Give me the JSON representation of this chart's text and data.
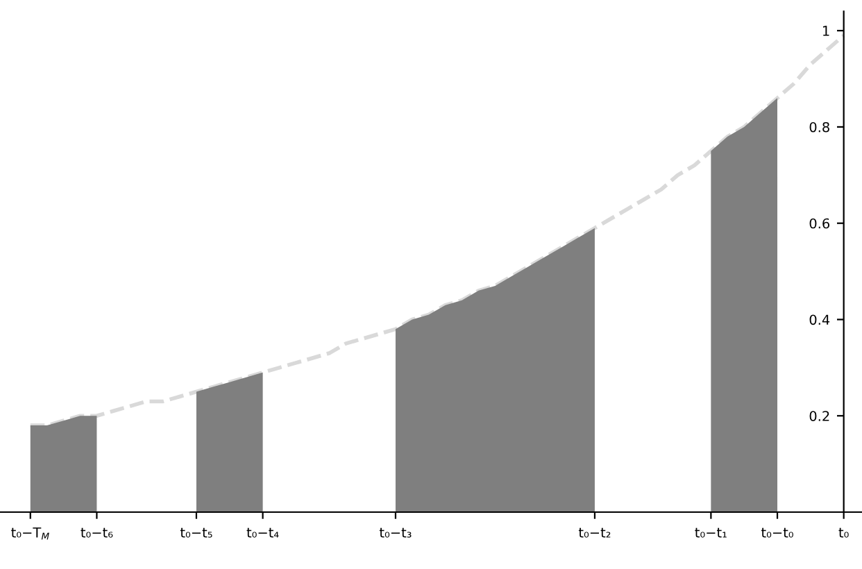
{
  "chart_data": {
    "type": "area",
    "ylim": [
      0,
      1.04
    ],
    "categories": [
      "t₀−T$_{M}$",
      null,
      null,
      null,
      "t₀−t₆",
      null,
      null,
      null,
      null,
      null,
      "t₀−t₅",
      null,
      null,
      null,
      "t₀−t₄",
      null,
      null,
      null,
      null,
      null,
      null,
      null,
      "t₀−t₃",
      null,
      null,
      null,
      null,
      null,
      null,
      null,
      null,
      null,
      null,
      null,
      "t₀−t₂",
      null,
      null,
      null,
      null,
      null,
      null,
      "t₀−t₁",
      null,
      null,
      null,
      "t₀−t₀",
      null,
      null,
      null,
      "t₀"
    ],
    "yticks": [
      0.2,
      0.4,
      0.6,
      0.8,
      1
    ],
    "series": [
      {
        "type": "line",
        "line_style": "dashed",
        "color": "#d9d9d9",
        "values": [
          0.18,
          0.18,
          0.19,
          0.2,
          0.2,
          0.21,
          0.22,
          0.23,
          0.23,
          0.24,
          0.25,
          0.26,
          0.27,
          0.28,
          0.29,
          0.3,
          0.31,
          0.32,
          0.33,
          0.35,
          0.36,
          0.37,
          0.38,
          0.4,
          0.41,
          0.43,
          0.44,
          0.46,
          0.47,
          0.49,
          0.51,
          0.53,
          0.55,
          0.57,
          0.59,
          0.61,
          0.63,
          0.65,
          0.67,
          0.7,
          0.72,
          0.75,
          0.78,
          0.8,
          0.83,
          0.86,
          0.89,
          0.93,
          0.96,
          0.99
        ]
      },
      {
        "color": "#7f7f7f",
        "values": [
          0.18,
          0.18,
          0.19,
          0.2,
          0.2,
          null,
          null,
          null,
          null,
          null,
          0.25,
          0.26,
          0.27,
          0.28,
          0.29,
          null,
          null,
          null,
          null,
          null,
          null,
          null,
          0.38,
          0.4,
          0.41,
          0.43,
          0.44,
          0.46,
          0.47,
          0.49,
          0.51,
          0.53,
          0.55,
          0.57,
          0.59,
          null,
          null,
          null,
          null,
          null,
          null,
          0.75,
          0.78,
          0.8,
          0.83,
          0.86,
          null,
          null,
          null,
          null
        ]
      }
    ]
  }
}
